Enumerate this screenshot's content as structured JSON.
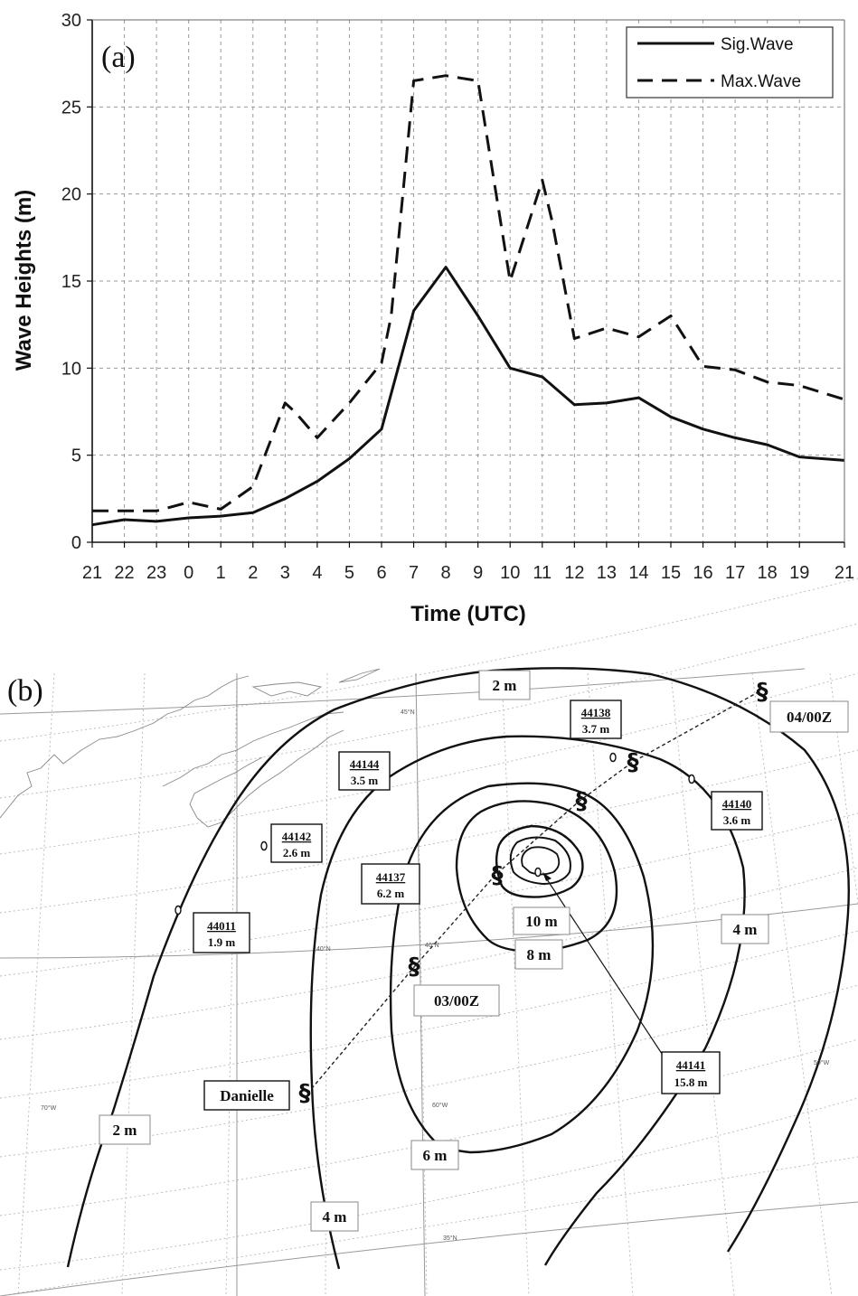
{
  "chart_data": [
    {
      "panel": "(a)",
      "type": "line",
      "xlabel": "Time (UTC)",
      "ylabel": "Wave Heights (m)",
      "categories": [
        "21",
        "22",
        "23",
        "0",
        "1",
        "2",
        "3",
        "4",
        "5",
        "6",
        "7",
        "8",
        "9",
        "10",
        "11",
        "12",
        "13",
        "14",
        "15",
        "16",
        "17",
        "18",
        "19",
        "21"
      ],
      "yticks": [
        "0",
        "5",
        "10",
        "15",
        "20",
        "25",
        "30"
      ],
      "ylim": [
        0,
        30
      ],
      "grid": true,
      "legend_position": "top-right",
      "series": [
        {
          "name": "Sig.Wave",
          "style": "solid",
          "color": "#111111",
          "x": [
            21,
            22,
            23,
            24,
            25,
            26,
            27,
            28,
            29,
            30,
            31,
            32,
            33,
            34,
            35,
            36,
            37,
            38,
            39,
            40,
            41,
            42,
            43,
            44.4
          ],
          "values": [
            1.0,
            1.3,
            1.2,
            1.4,
            1.5,
            1.7,
            2.5,
            3.5,
            4.8,
            6.5,
            13.3,
            15.8,
            13.0,
            10.0,
            9.5,
            7.9,
            8.0,
            8.3,
            7.2,
            6.5,
            6.0,
            5.6,
            4.9,
            4.7
          ]
        },
        {
          "name": "Max.Wave",
          "style": "dashed",
          "color": "#111111",
          "x": [
            21,
            22,
            23,
            24,
            25,
            26,
            27,
            27.3,
            28,
            29,
            30,
            30.3,
            31,
            32,
            33,
            34,
            35,
            35.3,
            36,
            37,
            38,
            39,
            40,
            41,
            42,
            43,
            44.4
          ],
          "values": [
            1.8,
            1.8,
            1.8,
            2.3,
            1.9,
            3.2,
            8.0,
            7.5,
            6.0,
            8.0,
            10.3,
            13.0,
            26.5,
            26.8,
            26.5,
            15.0,
            20.8,
            18.5,
            11.7,
            12.3,
            11.8,
            13.0,
            10.1,
            9.9,
            9.2,
            9.0,
            8.2
          ]
        }
      ]
    },
    {
      "panel": "(b)",
      "type": "map",
      "storm_name": "Danielle",
      "track_times": [
        "03/00Z",
        "04/00Z"
      ],
      "contour_labels": [
        "2 m",
        "2 m",
        "4 m",
        "4 m",
        "6 m",
        "8 m",
        "10 m"
      ],
      "buoys": [
        {
          "id": "44138",
          "height": "3.7 m"
        },
        {
          "id": "44144",
          "height": "3.5 m"
        },
        {
          "id": "44140",
          "height": "3.6 m"
        },
        {
          "id": "44142",
          "height": "2.6 m"
        },
        {
          "id": "44137",
          "height": "6.2 m"
        },
        {
          "id": "44011",
          "height": "1.9 m"
        },
        {
          "id": "44141",
          "height": "15.8 m"
        }
      ],
      "graticule_labels": [
        "45°N",
        "40°N",
        "40°N",
        "35°N",
        "70°W",
        "60°W",
        "50°W"
      ]
    }
  ]
}
